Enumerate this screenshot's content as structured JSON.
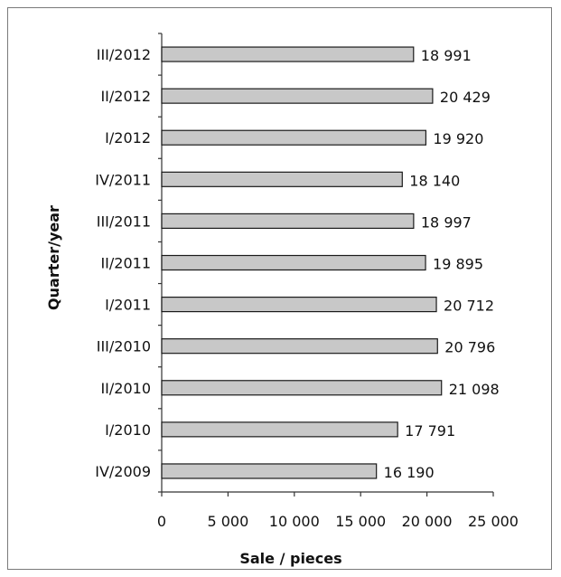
{
  "chart_data": {
    "type": "bar",
    "orientation": "horizontal",
    "categories": [
      "IV/2009",
      "I/2010",
      "II/2010",
      "III/2010",
      "I/2011",
      "II/2011",
      "III/2011",
      "IV/2011",
      "I/2012",
      "II/2012",
      "III/2012"
    ],
    "values": [
      16190,
      17791,
      21098,
      20796,
      20712,
      19895,
      18997,
      18140,
      19920,
      20429,
      18991
    ],
    "value_labels": [
      "16 190",
      "17 791",
      "21 098",
      "20 796",
      "20 712",
      "19 895",
      "18 997",
      "18 140",
      "19 920",
      "20 429",
      "18 991"
    ],
    "xlabel": "Sale / pieces",
    "ylabel": "Quarter/year",
    "xlim": [
      0,
      25000
    ],
    "xticks": [
      0,
      5000,
      10000,
      15000,
      20000,
      25000
    ],
    "xtick_labels": [
      "0",
      "5 000",
      "10 000",
      "15 000",
      "20 000",
      "25 000"
    ],
    "grid": false,
    "colors": {
      "bar_fill": "#c8c8c8",
      "bar_stroke": "#1a1a1a",
      "axis": "#333333"
    }
  }
}
